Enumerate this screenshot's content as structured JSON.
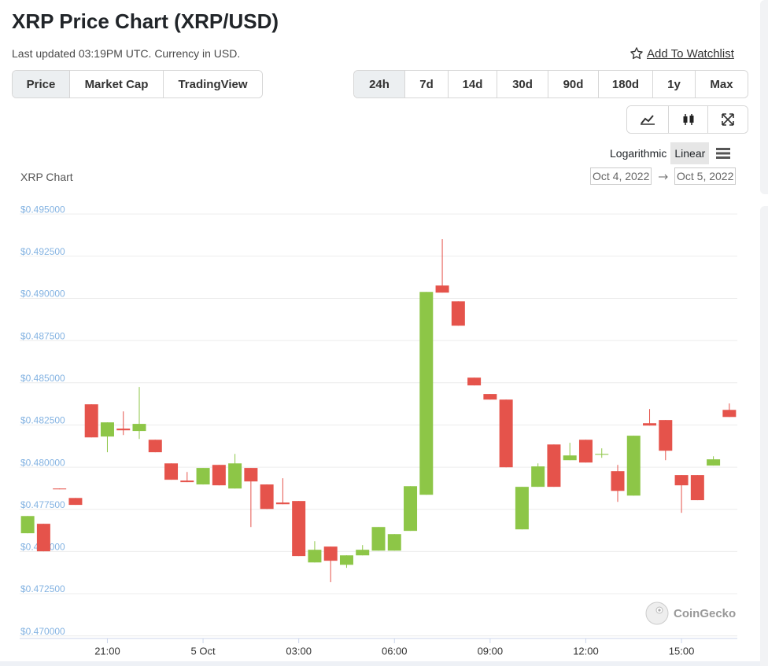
{
  "header": {
    "title": "XRP Price Chart (XRP/USD)",
    "updated": "Last updated 03:19PM UTC. Currency in USD.",
    "watchlist": "Add To Watchlist"
  },
  "tabs": [
    "Price",
    "Market Cap",
    "TradingView"
  ],
  "ranges": [
    "24h",
    "7d",
    "14d",
    "30d",
    "90d",
    "180d",
    "1y",
    "Max"
  ],
  "scale_options": [
    "Logarithmic",
    "Linear"
  ],
  "date_range": {
    "from": "Oct 4, 2022",
    "to": "Oct 5, 2022"
  },
  "watermark": "CoinGecko",
  "chart_data": {
    "type": "candlestick",
    "title": "XRP Chart",
    "log_scale": false,
    "grid": true,
    "up_color": "#8dc647",
    "down_color": "#e5534b",
    "x": [
      18.5,
      19,
      19.5,
      20,
      20.5,
      21,
      21.5,
      22,
      22.5,
      23,
      23.5,
      24,
      24.5,
      25,
      25.5,
      26,
      26.5,
      27,
      27.5,
      28,
      28.5,
      29,
      29.5,
      30,
      30.5,
      31,
      31.5,
      32,
      32.5,
      33,
      33.5,
      34,
      34.5,
      35,
      35.5,
      36,
      36.5,
      37,
      37.5,
      38,
      38.5,
      39,
      39.5,
      40,
      40.5
    ],
    "open": [
      0.47585,
      0.47641,
      0.4785,
      0.47794,
      0.48349,
      0.48158,
      0.48205,
      0.48191,
      0.48139,
      0.47999,
      0.47897,
      0.47874,
      0.4799,
      0.4785,
      0.47972,
      0.47874,
      0.47767,
      0.47776,
      0.47412,
      0.47506,
      0.47398,
      0.47454,
      0.47482,
      0.47482,
      0.47599,
      0.47813,
      0.49053,
      0.48959,
      0.48507,
      0.4841,
      0.48377,
      0.47608,
      0.4786,
      0.48111,
      0.48018,
      0.48139,
      0.4805,
      0.47953,
      0.47808,
      0.48237,
      0.48256,
      0.4793,
      0.4793,
      0.47986,
      0.48316
    ],
    "high": [
      0.47687,
      0.47641,
      0.4785,
      0.47794,
      0.48349,
      0.48242,
      0.48307,
      0.48452,
      0.48139,
      0.47999,
      0.47948,
      0.47972,
      0.4799,
      0.48055,
      0.47972,
      0.47874,
      0.47911,
      0.47776,
      0.47538,
      0.47506,
      0.47454,
      0.47515,
      0.47622,
      0.4758,
      0.47864,
      0.49015,
      0.49328,
      0.48959,
      0.48507,
      0.4841,
      0.48377,
      0.4786,
      0.47999,
      0.48111,
      0.48121,
      0.48139,
      0.48088,
      0.4799,
      0.48163,
      0.48321,
      0.48256,
      0.4793,
      0.4793,
      0.48041,
      0.48354
    ],
    "low": [
      0.47585,
      0.47478,
      0.47846,
      0.47753,
      0.48153,
      0.48065,
      0.48167,
      0.48144,
      0.48065,
      0.47902,
      0.47888,
      0.47874,
      0.47869,
      0.4785,
      0.47622,
      0.47729,
      0.47757,
      0.4745,
      0.47412,
      0.47296,
      0.4738,
      0.47454,
      0.47482,
      0.47482,
      0.47599,
      0.47813,
      0.49011,
      0.48815,
      0.48461,
      0.48377,
      0.47976,
      0.47608,
      0.4786,
      0.4786,
      0.48018,
      0.48004,
      0.48032,
      0.47771,
      0.47808,
      0.48223,
      0.48018,
      0.47706,
      0.47781,
      0.47986,
      0.48274
    ],
    "close": [
      0.47687,
      0.47478,
      0.47846,
      0.47753,
      0.48153,
      0.48242,
      0.48195,
      0.48233,
      0.48065,
      0.47902,
      0.47888,
      0.47972,
      0.47869,
      0.47999,
      0.47892,
      0.47729,
      0.47757,
      0.4745,
      0.47487,
      0.47422,
      0.47454,
      0.47487,
      0.47622,
      0.4758,
      0.47864,
      0.49015,
      0.49011,
      0.48815,
      0.48461,
      0.48377,
      0.47976,
      0.4786,
      0.47981,
      0.4786,
      0.48046,
      0.48004,
      0.48055,
      0.47836,
      0.48163,
      0.48223,
      0.48074,
      0.47869,
      0.47781,
      0.48023,
      0.48274
    ],
    "xlim": [
      18.25,
      40.75
    ],
    "xticks": [
      {
        "value": 21,
        "label": "21:00"
      },
      {
        "value": 24,
        "label": "5 Oct"
      },
      {
        "value": 27,
        "label": "03:00"
      },
      {
        "value": 30,
        "label": "06:00"
      },
      {
        "value": 33,
        "label": "09:00"
      },
      {
        "value": 36,
        "label": "12:00"
      },
      {
        "value": 39,
        "label": "15:00"
      }
    ],
    "ylim": [
      0.4698,
      0.4958
    ],
    "yticks": [
      {
        "value": 0.47,
        "label": "$0.470000"
      },
      {
        "value": 0.4725,
        "label": "$0.472500"
      },
      {
        "value": 0.475,
        "label": "$0.475000"
      },
      {
        "value": 0.4775,
        "label": "$0.477500"
      },
      {
        "value": 0.48,
        "label": "$0.480000"
      },
      {
        "value": 0.4825,
        "label": "$0.482500"
      },
      {
        "value": 0.485,
        "label": "$0.485000"
      },
      {
        "value": 0.4875,
        "label": "$0.487500"
      },
      {
        "value": 0.49,
        "label": "$0.490000"
      },
      {
        "value": 0.4925,
        "label": "$0.492500"
      },
      {
        "value": 0.495,
        "label": "$0.495000"
      }
    ]
  }
}
